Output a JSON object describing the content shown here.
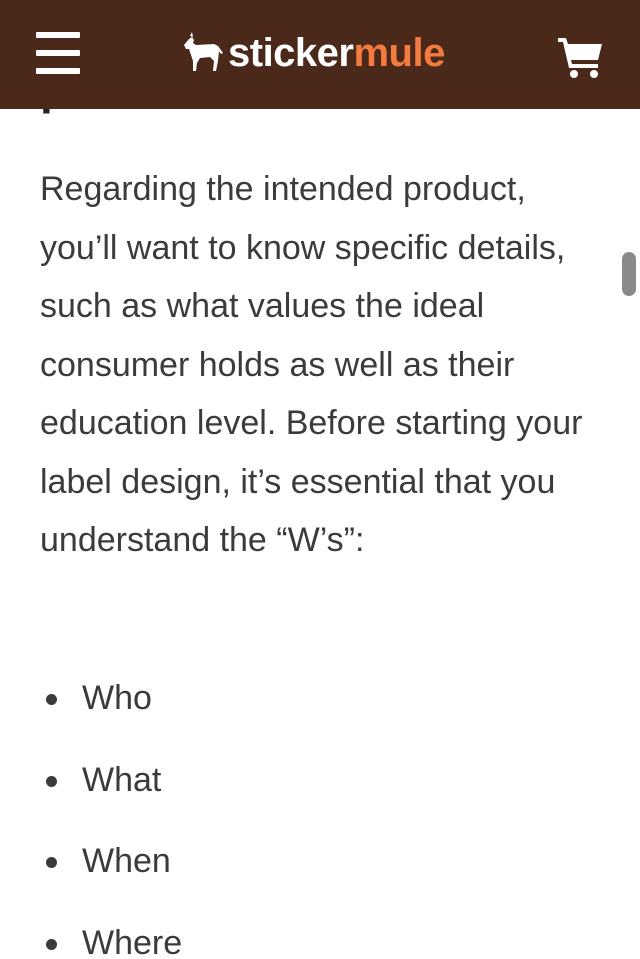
{
  "header": {
    "logo": {
      "part1": "sticker",
      "part2": "mule",
      "accent_color": "#f47b3f",
      "text_color": "#ffffff"
    },
    "background_color": "#4a291b",
    "menu_icon": "hamburger-menu-icon",
    "cart_icon": "shopping-cart-icon"
  },
  "article": {
    "heading_partial": "picture",
    "paragraph": "Regarding the intended product, you’ll want to know specific details, such as what values the ideal consumer holds as well as their education level. Before starting your label design, it’s essential that you understand the “W’s”:",
    "list": [
      "Who",
      "What",
      "When",
      "Where"
    ]
  }
}
